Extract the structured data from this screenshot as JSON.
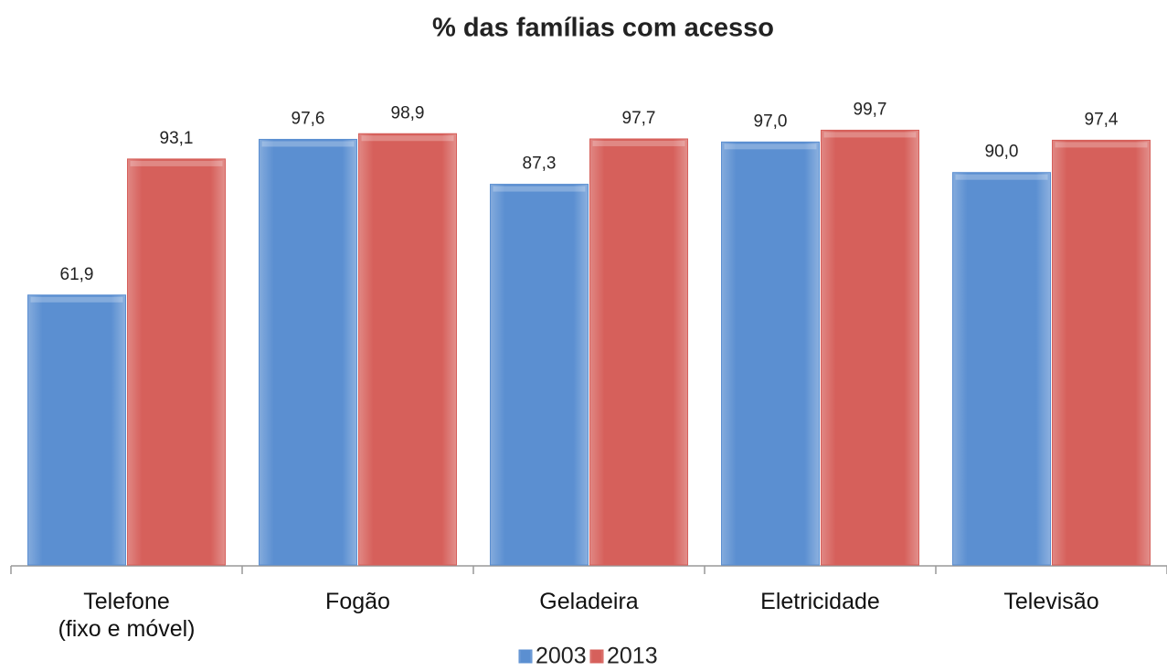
{
  "chart_data": {
    "type": "bar",
    "title": "% das famílias com acesso",
    "categories": [
      "Telefone\n(fixo e móvel)",
      "Fogão",
      "Geladeira",
      "Eletricidade",
      "Televisão"
    ],
    "series": [
      {
        "name": "2003",
        "color": "#5b8fd1",
        "values": [
          61.9,
          97.6,
          87.3,
          97.0,
          90.0
        ],
        "value_labels": [
          "61,9",
          "97,6",
          "87,3",
          "97,0",
          "90,0"
        ]
      },
      {
        "name": "2013",
        "color": "#d6605b",
        "values": [
          93.1,
          98.9,
          97.7,
          99.7,
          97.4
        ],
        "value_labels": [
          "93,1",
          "98,9",
          "97,7",
          "99,7",
          "97,4"
        ]
      }
    ],
    "ylim": [
      0,
      100
    ],
    "legend": "bottom"
  }
}
